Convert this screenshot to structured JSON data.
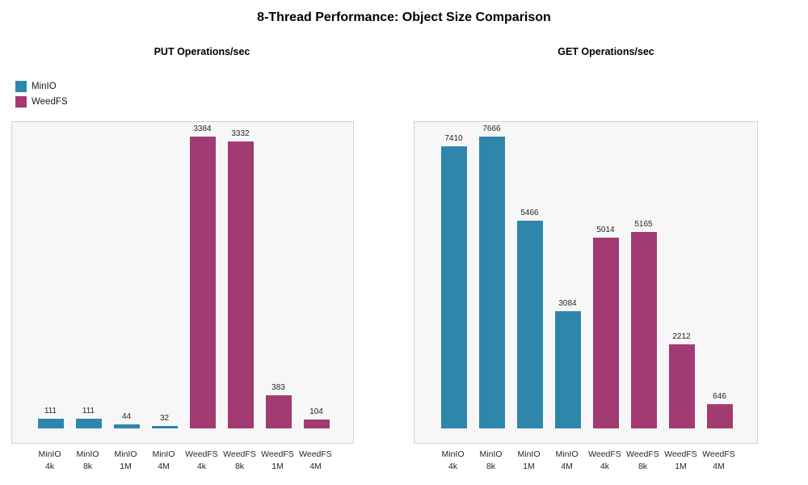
{
  "page": {
    "title": "8-Thread Performance: Object Size Comparison"
  },
  "legend": {
    "position": "top-left",
    "items": [
      {
        "label": "MinIO",
        "color": "#2e86ab"
      },
      {
        "label": "WeedFS",
        "color": "#a23b72"
      }
    ]
  },
  "colors": {
    "MinIO": "#2e86ab",
    "WeedFS": "#a23b72",
    "panel_bg": "#f7f7f7",
    "panel_border": "#d2d2d2",
    "label_text": "#262626"
  },
  "chart_data": [
    {
      "type": "bar",
      "title": "PUT Operations/sec",
      "categories": [
        "MinIO 4k",
        "MinIO 8k",
        "MinIO 1M",
        "MinIO 4M",
        "WeedFS 4k",
        "WeedFS 8k",
        "WeedFS 1M",
        "WeedFS 4M"
      ],
      "values": [
        111,
        111,
        44,
        32,
        3384,
        3332,
        383,
        104
      ],
      "bar_series": [
        "MinIO",
        "MinIO",
        "MinIO",
        "MinIO",
        "WeedFS",
        "WeedFS",
        "WeedFS",
        "WeedFS"
      ],
      "xlabel": "",
      "ylabel": "",
      "ylim": [
        -169,
        3553
      ],
      "grid": false,
      "data_labels": true,
      "y_axis_ticks": false
    },
    {
      "type": "bar",
      "title": "GET Operations/sec",
      "categories": [
        "MinIO 4k",
        "MinIO 8k",
        "MinIO 1M",
        "MinIO 4M",
        "WeedFS 4k",
        "WeedFS 8k",
        "WeedFS 1M",
        "WeedFS 4M"
      ],
      "values": [
        7410,
        7666,
        5466,
        3084,
        5014,
        5165,
        2212,
        646
      ],
      "bar_series": [
        "MinIO",
        "MinIO",
        "MinIO",
        "MinIO",
        "WeedFS",
        "WeedFS",
        "WeedFS",
        "WeedFS"
      ],
      "xlabel": "",
      "ylabel": "",
      "ylim": [
        -383,
        8049
      ],
      "grid": false,
      "data_labels": true,
      "y_axis_ticks": false
    }
  ]
}
